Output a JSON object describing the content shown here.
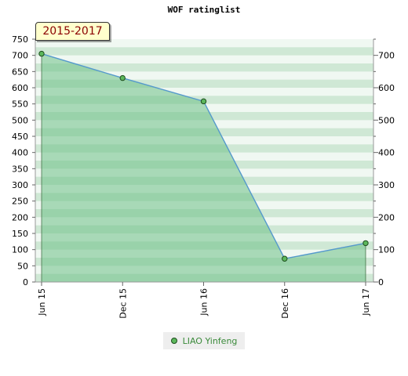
{
  "chart_data": {
    "type": "line",
    "title": "WOF ratinglist",
    "period_label": "2015-2017",
    "categories": [
      "Jun 15",
      "Dec 15",
      "Jun 16",
      "Dec 16",
      "Jun 17"
    ],
    "series": [
      {
        "name": "LIAO Yinfeng",
        "values": [
          705,
          630,
          558,
          72,
          120
        ]
      }
    ],
    "y_left_ticks": [
      0,
      50,
      100,
      150,
      200,
      250,
      300,
      350,
      400,
      450,
      500,
      550,
      600,
      650,
      700,
      750
    ],
    "y_right_ticks": [
      0,
      100,
      200,
      300,
      400,
      500,
      600,
      700
    ],
    "ylim": [
      0,
      750
    ],
    "xlabel": "",
    "ylabel": "",
    "legend_position": "bottom",
    "colors": {
      "line": "#5599cc",
      "fill": "#6dbf86",
      "marker": "#5cb85c",
      "marker_border": "#1e4d1e",
      "band_dark": "#cfe8d5",
      "band_light": "#f0f8f2"
    }
  }
}
